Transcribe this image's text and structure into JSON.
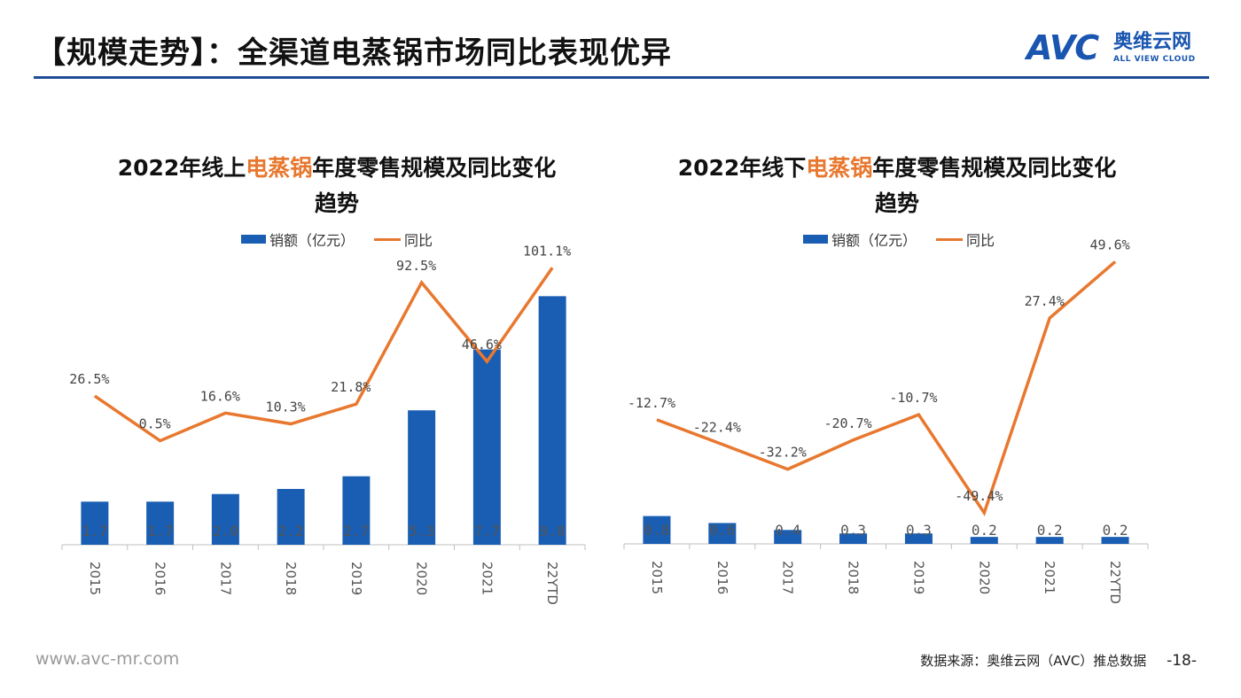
{
  "header": {
    "title": "【规模走势】：全渠道电蒸锅市场同比表现优异",
    "logo_avc": "AVC",
    "logo_cn": "奥维云网",
    "logo_en": "ALL VIEW CLOUD"
  },
  "colors": {
    "bar": "#1a5eb3",
    "line": "#e8782f",
    "rule": "#1f4e96"
  },
  "chart_data": [
    {
      "type": "bar",
      "title_parts": [
        "2022年线上",
        "电蒸锅",
        "年度零售规模及同比变化"
      ],
      "title_line2": "趋势",
      "legend": {
        "bar": "销额（亿元）",
        "line": "同比"
      },
      "categories": [
        "2015",
        "2016",
        "2017",
        "2018",
        "2019",
        "2020",
        "2021",
        "22YTD"
      ],
      "series": [
        {
          "name": "销额（亿元）",
          "type": "bar",
          "values": [
            1.7,
            1.7,
            2.0,
            2.2,
            2.7,
            5.3,
            7.7,
            9.8
          ],
          "labels": [
            "1.7",
            "1.7",
            "2.0",
            "2.2",
            "2.7",
            "5.3",
            "7.7",
            "9.8"
          ]
        },
        {
          "name": "同比",
          "type": "line",
          "values": [
            26.5,
            0.5,
            16.6,
            10.3,
            21.8,
            92.5,
            46.6,
            101.1
          ],
          "labels": [
            "26.5%",
            "0.5%",
            "16.6%",
            "10.3%",
            "21.8%",
            "92.5%",
            "46.6%",
            "101.1%"
          ]
        }
      ],
      "bar_max": 11,
      "line_range": [
        -60,
        110
      ],
      "grid": false,
      "legend_position": "top"
    },
    {
      "type": "bar",
      "title_parts": [
        "2022年线下",
        "电蒸锅",
        "年度零售规模及同比变化"
      ],
      "title_line2": "趋势",
      "legend": {
        "bar": "销额（亿元）",
        "line": "同比"
      },
      "categories": [
        "2015",
        "2016",
        "2017",
        "2018",
        "2019",
        "2020",
        "2021",
        "22YTD"
      ],
      "series": [
        {
          "name": "销额（亿元）",
          "type": "bar",
          "values": [
            0.8,
            0.6,
            0.4,
            0.3,
            0.3,
            0.2,
            0.2,
            0.2
          ],
          "labels": [
            "0.8",
            "0.6",
            "0.4",
            "0.3",
            "0.3",
            "0.2",
            "0.2",
            "0.2"
          ]
        },
        {
          "name": "同比",
          "type": "line",
          "values": [
            -12.7,
            -22.4,
            -32.2,
            -20.7,
            -10.7,
            -49.4,
            27.4,
            49.6
          ],
          "labels": [
            "-12.7%",
            "-22.4%",
            "-32.2%",
            "-20.7%",
            "-10.7%",
            "-49.4%",
            "27.4%",
            "49.6%"
          ]
        }
      ],
      "bar_max": 8,
      "line_range": [
        -55,
        55
      ],
      "grid": false,
      "legend_position": "top"
    }
  ],
  "footer": {
    "website": "www.avc-mr.com",
    "source": "数据来源：奥维云网（AVC）推总数据",
    "page": "-18-"
  }
}
